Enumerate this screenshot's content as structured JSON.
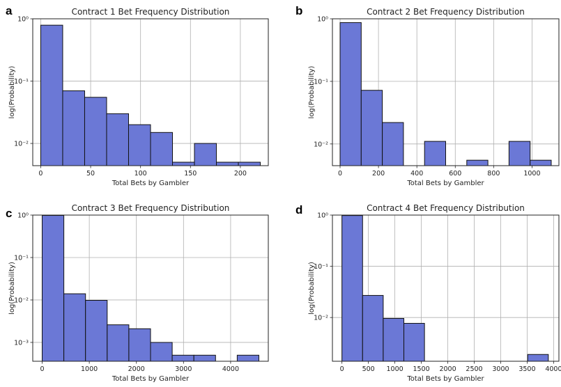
{
  "figure": {
    "panel_letters": [
      "a",
      "b",
      "c",
      "d"
    ]
  },
  "chart_data": [
    {
      "type": "bar",
      "title": "Contract 1 Bet Frequency Distribution",
      "xlabel": "Total Bets by Gambler",
      "ylabel": "log(Probability)",
      "yscale": "log",
      "bar_color": "#6b78d6",
      "grid": true,
      "bin_edges": [
        0,
        22,
        44,
        66,
        88,
        110,
        132,
        154,
        176,
        198,
        220
      ],
      "values": [
        0.79,
        0.07,
        0.055,
        0.03,
        0.02,
        0.015,
        0.005,
        0.01,
        0.005,
        0.005
      ],
      "xlim": [
        -8,
        228
      ],
      "ylim": [
        0.0044,
        1.0
      ],
      "xticks": [
        0,
        50,
        100,
        150,
        200
      ],
      "xtick_labels": [
        "0",
        "50",
        "100",
        "150",
        "200"
      ],
      "yticks": [
        0.01,
        0.1,
        1
      ],
      "ytick_labels": [
        "10⁻²",
        "10⁻¹",
        "10⁰"
      ]
    },
    {
      "type": "bar",
      "title": "Contract 2 Bet Frequency Distribution",
      "xlabel": "Total Bets by Gambler",
      "ylabel": "log(Probability)",
      "yscale": "log",
      "bar_color": "#6b78d6",
      "grid": true,
      "bin_edges": [
        0,
        110,
        220,
        330,
        440,
        550,
        660,
        770,
        880,
        990,
        1100
      ],
      "values": [
        0.87,
        0.072,
        0.022,
        0,
        0.011,
        0,
        0.0055,
        0,
        0.011,
        0.0055
      ],
      "xlim": [
        -40,
        1140
      ],
      "ylim": [
        0.0045,
        1.0
      ],
      "xticks": [
        0,
        200,
        400,
        600,
        800,
        1000
      ],
      "xtick_labels": [
        "0",
        "200",
        "400",
        "600",
        "800",
        "1000"
      ],
      "yticks": [
        0.01,
        0.1,
        1
      ],
      "ytick_labels": [
        "10⁻²",
        "10⁻¹",
        "10⁰"
      ]
    },
    {
      "type": "bar",
      "title": "Contract 3 Bet Frequency Distribution",
      "xlabel": "Total Bets by Gambler",
      "ylabel": "log(Probability)",
      "yscale": "log",
      "bar_color": "#6b78d6",
      "grid": true,
      "bin_edges": [
        0,
        460,
        920,
        1380,
        1840,
        2300,
        2760,
        3220,
        3680,
        4140,
        4600
      ],
      "values": [
        0.98,
        0.014,
        0.0098,
        0.0026,
        0.0021,
        0.001,
        0.0005,
        0.0005,
        0,
        0.0005
      ],
      "xlim": [
        -200,
        4800
      ],
      "ylim": [
        0.00036,
        1.0
      ],
      "xticks": [
        0,
        1000,
        2000,
        3000,
        4000
      ],
      "xtick_labels": [
        "0",
        "1000",
        "2000",
        "3000",
        "4000"
      ],
      "yticks": [
        0.001,
        0.01,
        0.1,
        1
      ],
      "ytick_labels": [
        "10⁻³",
        "10⁻²",
        "10⁻¹",
        "10⁰"
      ]
    },
    {
      "type": "bar",
      "title": "Contract 4 Bet Frequency Distribution",
      "xlabel": "Total Bets by Gambler",
      "ylabel": "log(Probability)",
      "yscale": "log",
      "bar_color": "#6b78d6",
      "grid": true,
      "bin_edges": [
        0,
        390,
        780,
        1170,
        1560,
        1950,
        2340,
        2730,
        3120,
        3510,
        3900
      ],
      "values": [
        0.98,
        0.027,
        0.0096,
        0.0077,
        0,
        0,
        0,
        0,
        0,
        0.0019
      ],
      "xlim": [
        -180,
        4100
      ],
      "ylim": [
        0.0014,
        1.0
      ],
      "xticks": [
        0,
        500,
        1000,
        1500,
        2000,
        2500,
        3000,
        3500,
        4000
      ],
      "xtick_labels": [
        "0",
        "500",
        "1000",
        "1500",
        "2000",
        "2500",
        "3000",
        "3500",
        "4000"
      ],
      "yticks": [
        0.01,
        0.1,
        1
      ],
      "ytick_labels": [
        "10⁻²",
        "10⁻¹",
        "10⁰"
      ]
    }
  ]
}
